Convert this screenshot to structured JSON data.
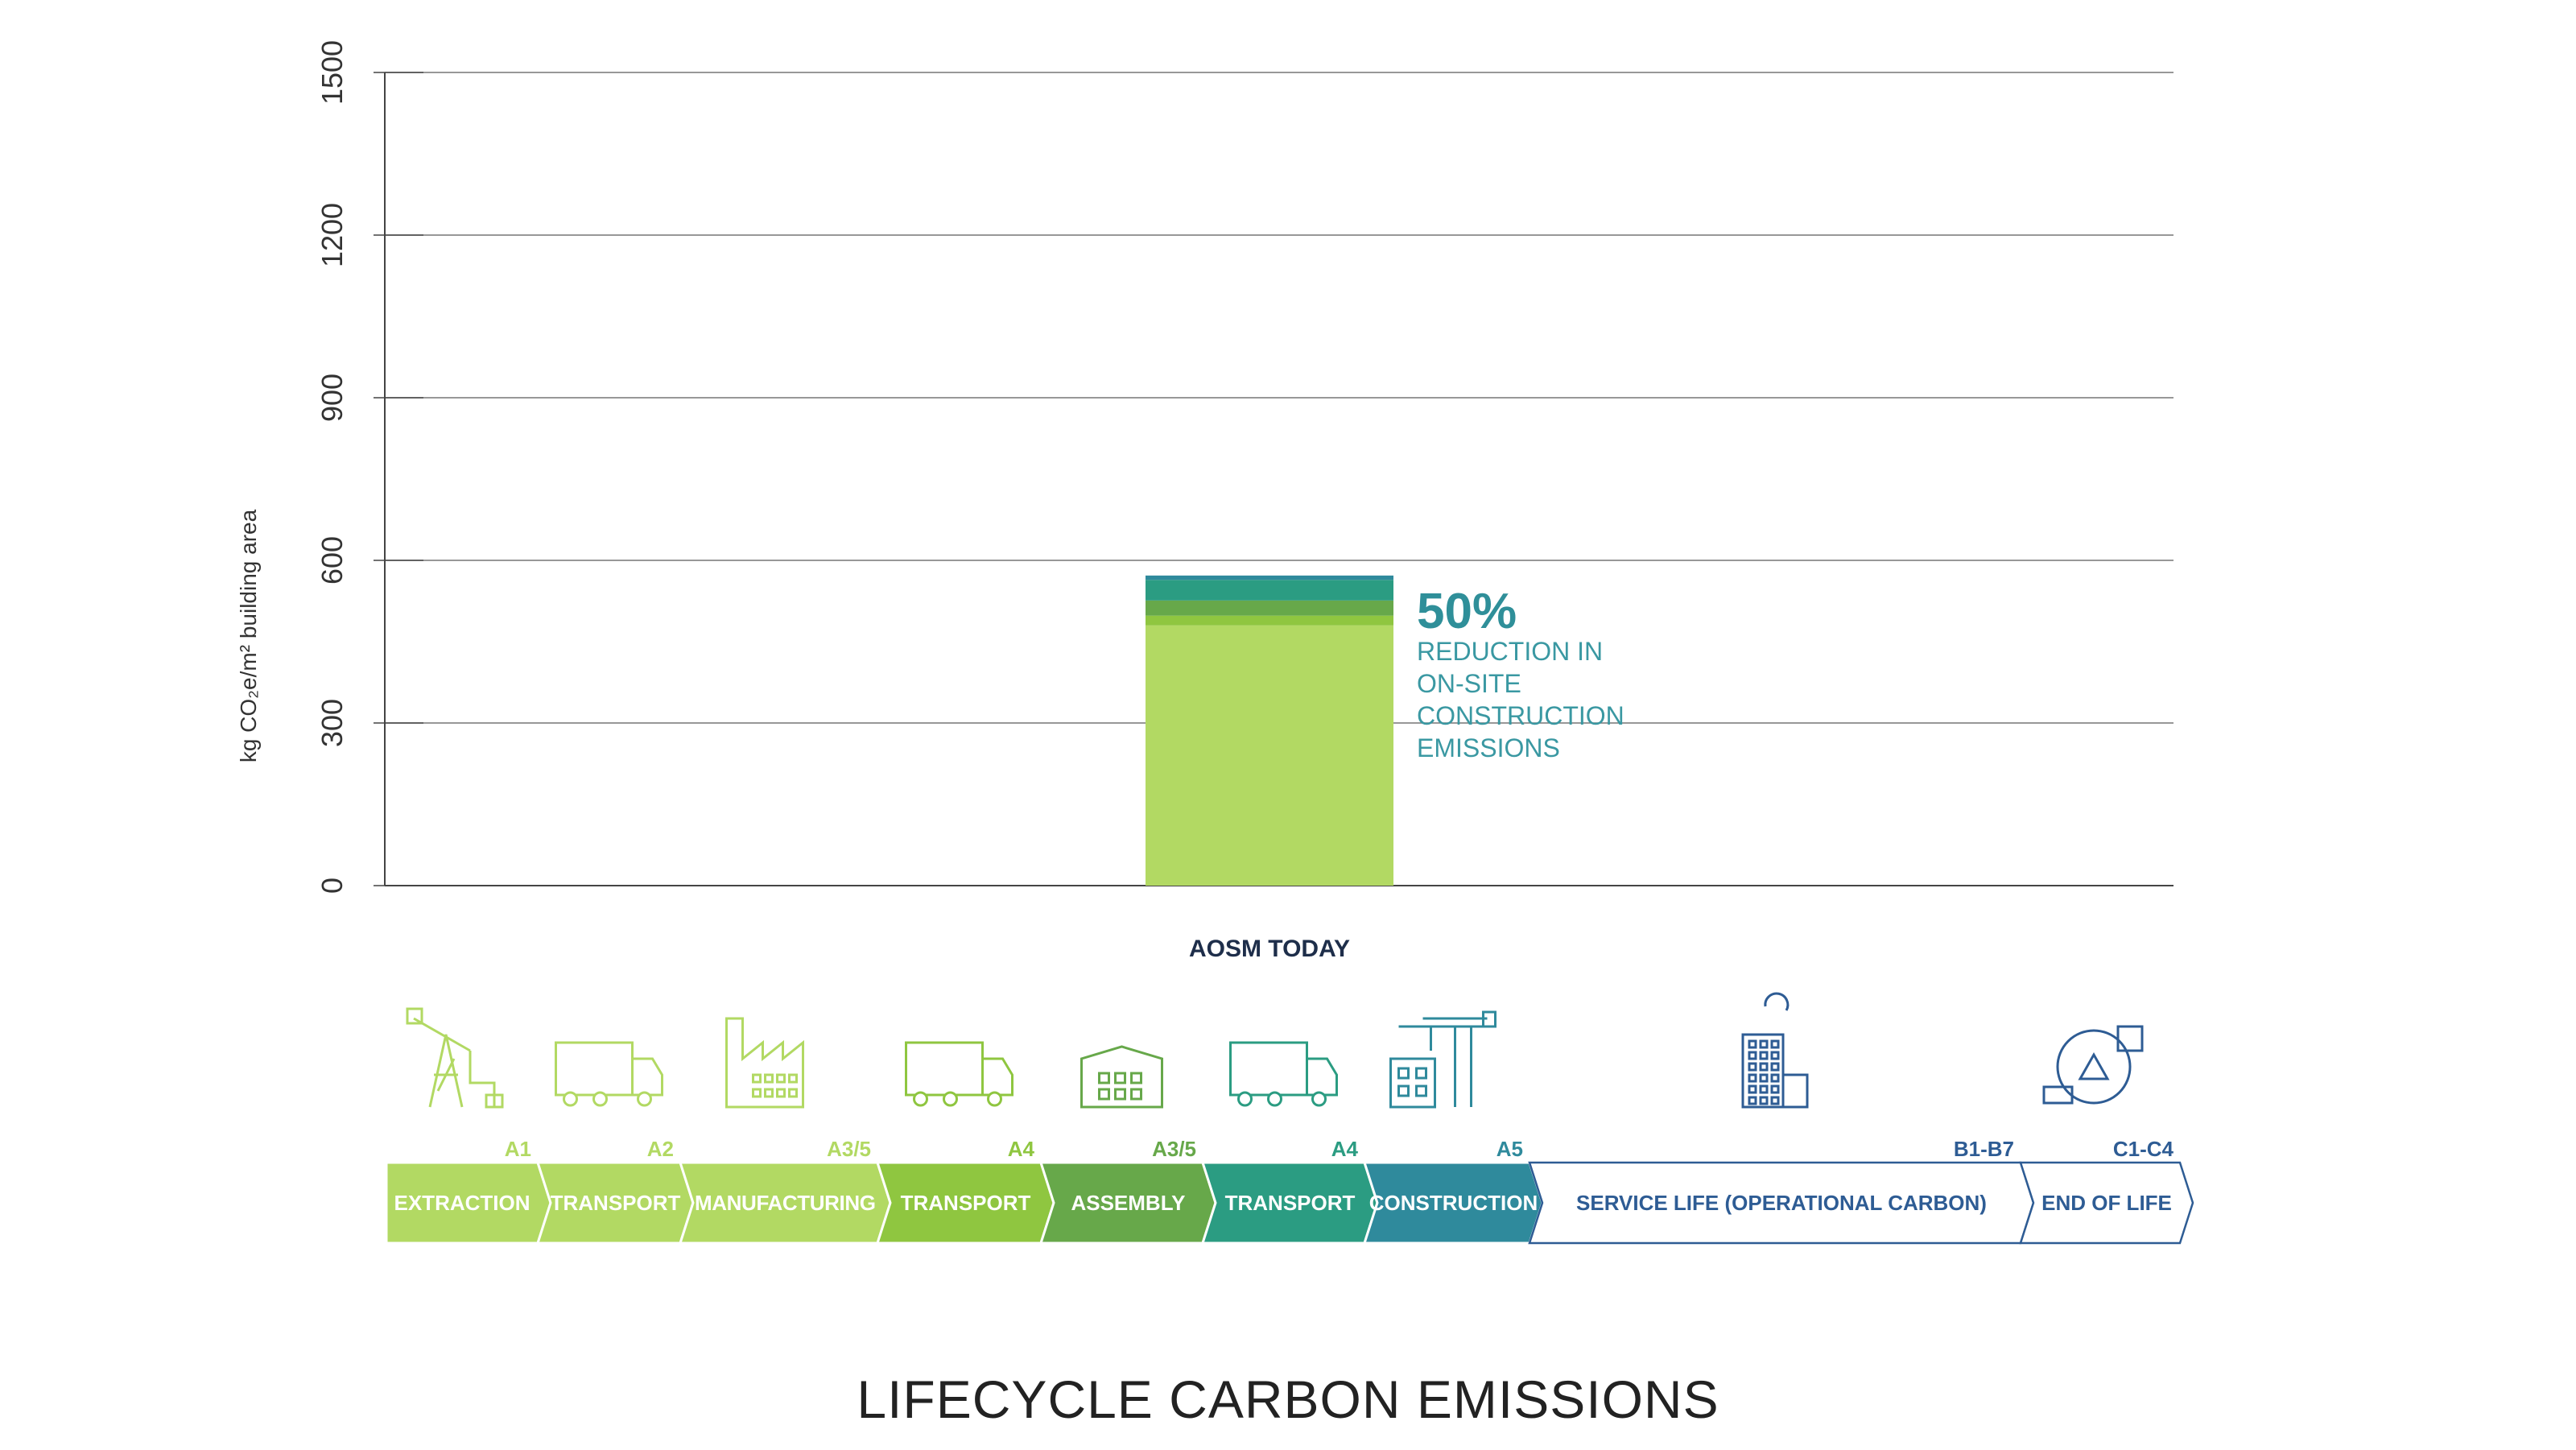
{
  "chart_data": {
    "type": "bar",
    "ylabel": "kg CO₂e/m² building area",
    "ylim": [
      0,
      1500
    ],
    "yticks": [
      0,
      300,
      600,
      900,
      1200,
      1500
    ],
    "grid": true,
    "categories": [
      "AOSM TODAY"
    ],
    "series": [
      {
        "values": [
          480
        ],
        "color": "#b2d963"
      },
      {
        "values": [
          18
        ],
        "color": "#8fc640"
      },
      {
        "values": [
          28
        ],
        "color": "#67a84a"
      },
      {
        "values": [
          38
        ],
        "color": "#2b9c82"
      },
      {
        "values": [
          8
        ],
        "color": "#2f8a9c"
      }
    ],
    "annotation": {
      "value": "50%",
      "text": [
        "REDUCTION IN",
        "ON-SITE",
        "CONSTRUCTION",
        "EMISSIONS"
      ]
    }
  },
  "stages": [
    {
      "label": "EXTRACTION",
      "code": "A1",
      "color": "#b2d963",
      "icon": "oil-pump-icon"
    },
    {
      "label": "TRANSPORT",
      "code": "A2",
      "color": "#b2d963",
      "icon": "truck-icon"
    },
    {
      "label": "MANUFACTURING",
      "code": "A3/5",
      "color": "#b2d963",
      "icon": "factory-icon"
    },
    {
      "label": "TRANSPORT",
      "code": "A4",
      "color": "#8fc640",
      "icon": "truck-icon"
    },
    {
      "label": "ASSEMBLY",
      "code": "A3/5",
      "color": "#67a84a",
      "icon": "warehouse-icon"
    },
    {
      "label": "TRANSPORT",
      "code": "A4",
      "color": "#2b9c82",
      "icon": "truck-icon"
    },
    {
      "label": "CONSTRUCTION",
      "code": "A5",
      "color": "#2f8a9c",
      "icon": "crane-icon"
    },
    {
      "label": "SERVICE LIFE (OPERATIONAL CARBON)",
      "code": "B1-B7",
      "color": "#2e5c94",
      "icon": "building-cycle-icon"
    },
    {
      "label": "END OF LIFE",
      "code": "C1-C4",
      "color": "#2e5c94",
      "icon": "recycle-icon"
    }
  ],
  "title": "LIFECYCLE CARBON EMISSIONS"
}
